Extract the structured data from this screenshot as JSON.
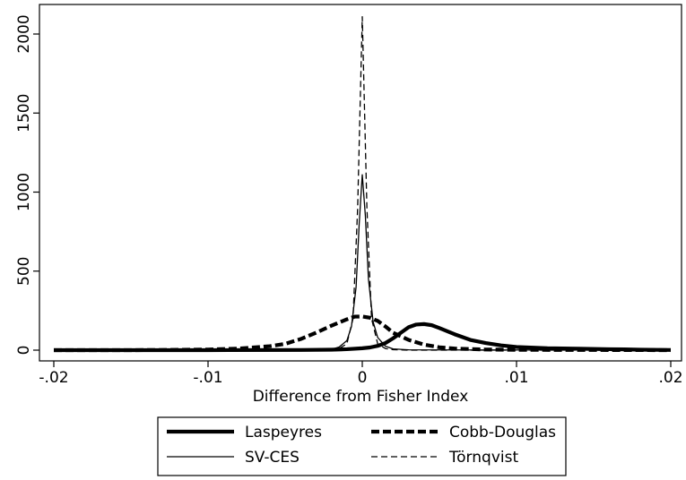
{
  "chart_data": {
    "type": "line",
    "title": "",
    "xlabel": "Difference from Fisher Index",
    "ylabel": "",
    "xlim": [
      -0.02,
      0.02
    ],
    "ylim": [
      0,
      2150
    ],
    "x_ticks": [
      {
        "value": -0.02,
        "label": "-.02"
      },
      {
        "value": -0.01,
        "label": "-.01"
      },
      {
        "value": 0,
        "label": "0"
      },
      {
        "value": 0.01,
        "label": ".01"
      },
      {
        "value": 0.02,
        "label": ".02"
      }
    ],
    "y_ticks": [
      {
        "value": 0,
        "label": "0"
      },
      {
        "value": 500,
        "label": "500"
      },
      {
        "value": 1000,
        "label": "1000"
      },
      {
        "value": 1500,
        "label": "1500"
      },
      {
        "value": 2000,
        "label": "2000"
      }
    ],
    "grid": false,
    "legend_position": "bottom",
    "series": [
      {
        "name": "Laspeyres",
        "style": "thick-solid",
        "points": [
          [
            -0.02,
            0
          ],
          [
            -0.01,
            0
          ],
          [
            -0.004,
            1
          ],
          [
            -0.002,
            3
          ],
          [
            -0.001,
            6
          ],
          [
            0,
            12
          ],
          [
            0.0005,
            17
          ],
          [
            0.001,
            27
          ],
          [
            0.0015,
            45
          ],
          [
            0.002,
            75
          ],
          [
            0.0025,
            110
          ],
          [
            0.003,
            145
          ],
          [
            0.0035,
            162
          ],
          [
            0.004,
            165
          ],
          [
            0.0045,
            158
          ],
          [
            0.005,
            140
          ],
          [
            0.006,
            100
          ],
          [
            0.007,
            65
          ],
          [
            0.008,
            45
          ],
          [
            0.009,
            30
          ],
          [
            0.01,
            20
          ],
          [
            0.012,
            12
          ],
          [
            0.014,
            9
          ],
          [
            0.016,
            6
          ],
          [
            0.017,
            5
          ],
          [
            0.018,
            3
          ],
          [
            0.02,
            1
          ]
        ]
      },
      {
        "name": "Cobb-Douglas",
        "style": "thick-dashed",
        "points": [
          [
            -0.02,
            0
          ],
          [
            -0.015,
            0
          ],
          [
            -0.012,
            2
          ],
          [
            -0.01,
            4
          ],
          [
            -0.008,
            10
          ],
          [
            -0.006,
            25
          ],
          [
            -0.005,
            40
          ],
          [
            -0.004,
            70
          ],
          [
            -0.003,
            110
          ],
          [
            -0.002,
            155
          ],
          [
            -0.001,
            195
          ],
          [
            -0.0005,
            212
          ],
          [
            0,
            213
          ],
          [
            0.0005,
            205
          ],
          [
            0.001,
            185
          ],
          [
            0.0015,
            150
          ],
          [
            0.002,
            110
          ],
          [
            0.003,
            65
          ],
          [
            0.004,
            35
          ],
          [
            0.005,
            18
          ],
          [
            0.006,
            10
          ],
          [
            0.008,
            4
          ],
          [
            0.01,
            2
          ],
          [
            0.015,
            1
          ],
          [
            0.02,
            0
          ]
        ]
      },
      {
        "name": "SV-CES",
        "style": "thin-solid",
        "points": [
          [
            -0.02,
            0
          ],
          [
            -0.003,
            0
          ],
          [
            -0.002,
            5
          ],
          [
            -0.0015,
            20
          ],
          [
            -0.001,
            60
          ],
          [
            -0.0007,
            150
          ],
          [
            -0.0004,
            400
          ],
          [
            -0.0002,
            800
          ],
          [
            0,
            1110
          ],
          [
            0.0002,
            850
          ],
          [
            0.0004,
            450
          ],
          [
            0.0007,
            180
          ],
          [
            0.001,
            80
          ],
          [
            0.0015,
            25
          ],
          [
            0.002,
            8
          ],
          [
            0.003,
            2
          ],
          [
            0.02,
            0
          ]
        ]
      },
      {
        "name": "Törnqvist",
        "style": "thin-dashed",
        "points": [
          [
            -0.02,
            0
          ],
          [
            -0.003,
            0
          ],
          [
            -0.002,
            3
          ],
          [
            -0.0015,
            10
          ],
          [
            -0.001,
            40
          ],
          [
            -0.0006,
            200
          ],
          [
            -0.0003,
            900
          ],
          [
            0,
            2110
          ],
          [
            0.0003,
            900
          ],
          [
            0.0006,
            200
          ],
          [
            0.001,
            40
          ],
          [
            0.0015,
            10
          ],
          [
            0.002,
            3
          ],
          [
            0.003,
            0
          ],
          [
            0.02,
            0
          ]
        ]
      }
    ]
  }
}
